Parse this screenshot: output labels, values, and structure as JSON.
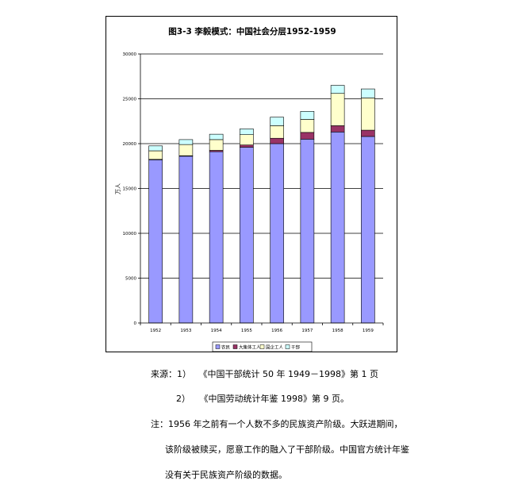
{
  "chart_data": {
    "type": "bar",
    "stacked": true,
    "title": "图3-3  李毅模式：中国社会分层1952-1959",
    "ylabel": "万人",
    "xlabel": "",
    "ylim": [
      0,
      30000
    ],
    "yticks": [
      0,
      5000,
      10000,
      15000,
      20000,
      25000,
      30000
    ],
    "ytick_labels": [
      "0",
      "5000",
      "10000",
      "15000",
      "20000",
      "25000",
      "30000"
    ],
    "grid": "horizontal",
    "legend_position": "bottom",
    "categories": [
      "1952",
      "1953",
      "1954",
      "1955",
      "1956",
      "1957",
      "1958",
      "1959"
    ],
    "series": [
      {
        "name": "农民",
        "color": "#9999ff",
        "values": [
          18200,
          18600,
          19100,
          19600,
          20000,
          20500,
          21300,
          20800
        ]
      },
      {
        "name": "大集体工人",
        "color": "#993366",
        "values": [
          50,
          50,
          150,
          250,
          600,
          750,
          700,
          700
        ]
      },
      {
        "name": "国企工人",
        "color": "#ffffcc",
        "values": [
          950,
          1250,
          1200,
          1150,
          1400,
          1450,
          3600,
          3600
        ]
      },
      {
        "name": "干部",
        "color": "#ccffff",
        "values": [
          550,
          550,
          600,
          650,
          950,
          900,
          900,
          1000
        ]
      }
    ]
  },
  "notes": {
    "source_label": "来源：1）",
    "source_1": "《中国干部统计 50 年 1949－1998》第 1 页",
    "source_2_num": "2）",
    "source_2": "《中国劳动统计年鉴 1998》第 9 页。",
    "note_label": "注：",
    "note_line1": "1956 年之前有一个人数不多的民族资产阶级。大跃进期间，",
    "note_line2": "该阶级被赎买，愿意工作的融入了干部阶级。中国官方统计年鉴",
    "note_line3": "没有关于民族资产阶级的数据。"
  }
}
